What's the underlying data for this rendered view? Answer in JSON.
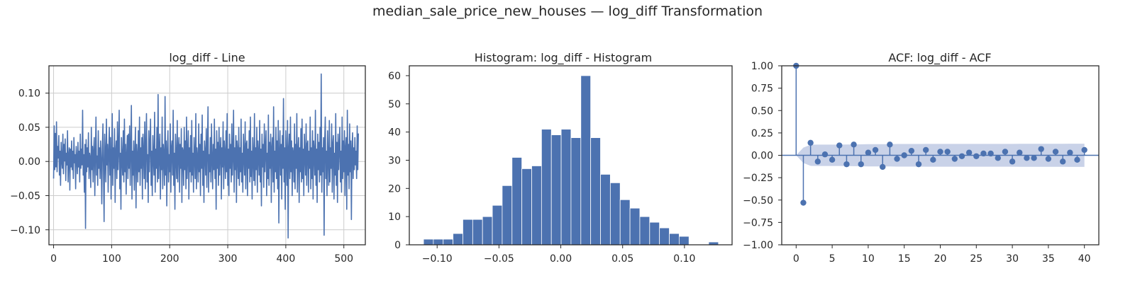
{
  "figure": {
    "suptitle": "median_sale_price_new_houses — log_diff Transformation"
  },
  "colors": {
    "series": "#4c72b0",
    "confidence_band": "#c9d2e8",
    "grid": "#cccccc",
    "axes_edge": "#262626",
    "text": "#262626"
  },
  "chart_data": [
    {
      "type": "line",
      "title": "log_diff - Line",
      "xlabel": "",
      "ylabel": "",
      "xlim": [
        -8,
        537
      ],
      "ylim": [
        -0.122,
        0.14
      ],
      "xticks": [
        0,
        100,
        200,
        300,
        400,
        500
      ],
      "xtick_labels": [
        "0",
        "100",
        "200",
        "300",
        "400",
        "500"
      ],
      "yticks": [
        -0.1,
        -0.05,
        0.0,
        0.05,
        0.1
      ],
      "ytick_labels": [
        "−0.10",
        "−0.05",
        "0.00",
        "0.05",
        "0.10"
      ],
      "grid": true,
      "series": [
        {
          "x_start": 0,
          "x_step": 1,
          "n": 526,
          "values": [
            -0.025,
            0.052,
            -0.012,
            0.041,
            -0.008,
            0.058,
            -0.015,
            0.022,
            0.005,
            0.038,
            -0.02,
            0.015,
            -0.035,
            0.028,
            0.002,
            -0.01,
            0.04,
            -0.018,
            0.025,
            0.001,
            0.033,
            -0.028,
            0.012,
            -0.005,
            0.045,
            -0.03,
            0.008,
            0.02,
            -0.042,
            0.018,
            -0.008,
            0.03,
            -0.012,
            0.015,
            -0.025,
            0.035,
            -0.002,
            0.01,
            -0.04,
            0.022,
            0.005,
            -0.018,
            0.028,
            -0.008,
            0.015,
            -0.03,
            0.04,
            -0.01,
            0.018,
            -0.005,
            0.075,
            -0.02,
            0.01,
            -0.045,
            0.025,
            -0.098,
            0.032,
            -0.015,
            0.02,
            -0.008,
            0.042,
            -0.025,
            0.012,
            0.005,
            -0.038,
            0.05,
            -0.012,
            0.022,
            -0.03,
            0.015,
            0.035,
            -0.05,
            0.01,
            0.065,
            -0.02,
            0.008,
            -0.035,
            0.045,
            -0.01,
            0.02,
            -0.025,
            0.03,
            0.002,
            -0.062,
            0.018,
            0.055,
            -0.015,
            -0.088,
            0.04,
            0.01,
            -0.03,
            0.062,
            -0.005,
            0.025,
            -0.045,
            0.015,
            0.05,
            -0.02,
            0.035,
            -0.055,
            0.008,
            0.07,
            -0.035,
            0.02,
            -0.01,
            0.048,
            -0.06,
            0.015,
            0.03,
            -0.025,
            0.058,
            -0.012,
            0.02,
            0.075,
            -0.04,
            0.012,
            -0.07,
            0.035,
            0.005,
            -0.02,
            0.045,
            -0.03,
            0.062,
            -0.015,
            0.025,
            -0.048,
            0.01,
            0.038,
            -0.025,
            0.04,
            -0.01,
            0.052,
            -0.035,
            0.02,
            0.082,
            -0.055,
            0.015,
            -0.02,
            0.03,
            -0.042,
            0.01,
            0.05,
            -0.068,
            0.025,
            0.008,
            -0.03,
            0.045,
            -0.015,
            0.065,
            -0.035,
            0.02,
            -0.01,
            0.035,
            -0.055,
            0.04,
            0.012,
            -0.025,
            0.058,
            -0.04,
            0.02,
            0.07,
            -0.03,
            0.01,
            -0.06,
            0.045,
            -0.015,
            0.025,
            0.062,
            -0.035,
            0.015,
            -0.05,
            0.038,
            0.005,
            -0.02,
            0.072,
            -0.045,
            0.018,
            -0.01,
            0.05,
            -0.03,
            0.098,
            -0.025,
            0.015,
            0.04,
            -0.055,
            0.02,
            -0.012,
            0.065,
            -0.04,
            0.025,
            0.008,
            -0.035,
            0.095,
            -0.02,
            0.03,
            -0.065,
            0.015,
            0.045,
            -0.03,
            0.01,
            -0.015,
            0.055,
            -0.045,
            0.02,
            0.03,
            -0.02,
            0.075,
            -0.035,
            0.012,
            -0.07,
            0.04,
            0.008,
            -0.025,
            0.06,
            -0.03,
            0.018,
            0.035,
            -0.045,
            0.025,
            -0.01,
            0.048,
            -0.06,
            0.02,
            0.015,
            -0.035,
            0.05,
            -0.012,
            0.03,
            -0.04,
            0.065,
            -0.025,
            0.01,
            0.045,
            -0.055,
            0.02,
            -0.015,
            0.038,
            -0.03,
            0.06,
            -0.02,
            0.012,
            -0.045,
            0.035,
            0.008,
            -0.025,
            0.07,
            -0.04,
            0.02,
            0.005,
            -0.03,
            0.055,
            -0.015,
            0.025,
            -0.05,
            0.04,
            -0.01,
            0.068,
            -0.035,
            0.015,
            -0.06,
            0.03,
            0.012,
            -0.02,
            0.048,
            -0.038,
            0.02,
            0.08,
            -0.045,
            0.01,
            -0.015,
            0.035,
            -0.03,
            0.055,
            0.005,
            -0.04,
            0.025,
            -0.012,
            0.062,
            -0.025,
            0.018,
            -0.07,
            0.045,
            -0.01,
            0.028,
            -0.035,
            0.05,
            -0.02,
            0.015,
            0.035,
            -0.055,
            0.02,
            -0.008,
            0.058,
            -0.04,
            0.03,
            0.012,
            -0.025,
            0.045,
            -0.015,
            0.07,
            -0.035,
            0.018,
            -0.05,
            0.04,
            -0.01,
            0.025,
            -0.03,
            0.055,
            -0.02,
            0.01,
            0.075,
            -0.045,
            0.02,
            -0.012,
            0.038,
            -0.06,
            0.03,
            0.015,
            -0.025,
            0.05,
            -0.035,
            0.02,
            -0.015,
            0.062,
            -0.03,
            0.012,
            -0.045,
            0.04,
            0.008,
            -0.02,
            0.058,
            -0.04,
            0.025,
            0.03,
            -0.05,
            0.018,
            -0.01,
            0.045,
            -0.03,
            0.065,
            -0.022,
            0.015,
            -0.055,
            0.035,
            0.005,
            -0.028,
            0.07,
            -0.035,
            0.02,
            -0.012,
            0.05,
            -0.045,
            0.03,
            0.01,
            -0.02,
            0.06,
            -0.03,
            0.018,
            -0.065,
            0.04,
            -0.008,
            0.025,
            -0.038,
            0.055,
            -0.015,
            0.02,
            0.045,
            -0.05,
            0.012,
            -0.025,
            0.068,
            -0.035,
            0.028,
            -0.01,
            0.04,
            -0.06,
            0.02,
            0.035,
            -0.03,
            0.08,
            -0.045,
            0.015,
            -0.015,
            0.05,
            -0.025,
            0.03,
            -0.04,
            0.06,
            -0.09,
            0.012,
            0.045,
            -0.02,
            0.025,
            -0.055,
            0.038,
            -0.01,
            0.092,
            -0.03,
            0.02,
            -0.07,
            0.045,
            0.005,
            -0.035,
            0.06,
            -0.112,
            0.018,
            0.04,
            -0.025,
            0.065,
            -0.015,
            0.03,
            -0.05,
            0.02,
            0.012,
            -0.03,
            0.055,
            -0.04,
            0.025,
            -0.01,
            0.07,
            -0.045,
            0.015,
            0.035,
            -0.06,
            0.02,
            -0.015,
            0.048,
            -0.03,
            0.062,
            -0.025,
            0.018,
            -0.05,
            0.04,
            0.008,
            -0.02,
            0.055,
            -0.035,
            0.025,
            0.03,
            -0.045,
            0.015,
            -0.01,
            0.065,
            -0.04,
            0.02,
            -0.025,
            0.045,
            -0.055,
            0.03,
            0.012,
            -0.02,
            0.075,
            -0.035,
            0.018,
            -0.06,
            0.04,
            -0.012,
            0.028,
            -0.03,
            0.05,
            -0.02,
            0.128,
            -0.045,
            0.02,
            -0.015,
            0.035,
            -0.108,
            0.03,
            0.065,
            -0.025,
            0.015,
            -0.05,
            0.045,
            0.005,
            -0.035,
            0.06,
            -0.03,
            0.02,
            -0.01,
            0.055,
            -0.045,
            0.025,
            0.038,
            -0.055,
            0.012,
            -0.02,
            0.07,
            -0.035,
            0.028,
            -0.06,
            0.04,
            -0.012,
            0.02,
            0.05,
            -0.03,
            0.015,
            -0.045,
            0.065,
            -0.025,
            0.03,
            -0.015,
            0.045,
            -0.05,
            0.02,
            0.035,
            -0.07,
            0.075,
            -0.02,
            0.025,
            -0.04,
            0.055,
            -0.015,
            0.03,
            -0.085,
            0.018,
            0.042,
            -0.025,
            0.02,
            -0.012,
            0.035,
            -0.005,
            0.015
          ]
        }
      ]
    },
    {
      "type": "bar",
      "title": "Histogram: log_diff - Histogram",
      "xlabel": "",
      "ylabel": "",
      "xlim": [
        -0.1225,
        0.1385
      ],
      "ylim": [
        0,
        63.5
      ],
      "xticks": [
        -0.1,
        -0.05,
        0.0,
        0.05,
        0.1
      ],
      "xtick_labels": [
        "−0.10",
        "−0.05",
        "0.00",
        "0.05",
        "0.10"
      ],
      "yticks": [
        0,
        10,
        20,
        30,
        40,
        50,
        60
      ],
      "ytick_labels": [
        "0",
        "10",
        "20",
        "30",
        "40",
        "50",
        "60"
      ],
      "grid": false,
      "bin_start": -0.111,
      "bin_width": 0.00795,
      "counts": [
        2,
        2,
        2,
        4,
        9,
        9,
        10,
        14,
        21,
        31,
        27,
        28,
        41,
        39,
        41,
        38,
        60,
        38,
        25,
        22,
        16,
        13,
        10,
        8,
        6,
        4,
        3,
        0,
        0,
        1
      ]
    },
    {
      "type": "scatter",
      "title": "ACF: log_diff - ACF",
      "xlabel": "",
      "ylabel": "",
      "xlim": [
        -2,
        42
      ],
      "ylim": [
        -1.0,
        1.0
      ],
      "xticks": [
        0,
        5,
        10,
        15,
        20,
        25,
        30,
        35,
        40
      ],
      "xtick_labels": [
        "0",
        "5",
        "10",
        "15",
        "20",
        "25",
        "30",
        "35",
        "40"
      ],
      "yticks": [
        -1.0,
        -0.75,
        -0.5,
        -0.25,
        0.0,
        0.25,
        0.5,
        0.75,
        1.0
      ],
      "ytick_labels": [
        "−1.00",
        "−0.75",
        "−0.50",
        "−0.25",
        "0.00",
        "0.25",
        "0.50",
        "0.75",
        "1.00"
      ],
      "grid": false,
      "lags": [
        0,
        1,
        2,
        3,
        4,
        5,
        6,
        7,
        8,
        9,
        10,
        11,
        12,
        13,
        14,
        15,
        16,
        17,
        18,
        19,
        20,
        21,
        22,
        23,
        24,
        25,
        26,
        27,
        28,
        29,
        30,
        31,
        32,
        33,
        34,
        35,
        36,
        37,
        38,
        39,
        40
      ],
      "acf": [
        1.0,
        -0.53,
        0.14,
        -0.07,
        0.01,
        -0.05,
        0.11,
        -0.1,
        0.12,
        -0.1,
        0.03,
        0.06,
        -0.13,
        0.12,
        -0.04,
        0.0,
        0.05,
        -0.1,
        0.06,
        -0.05,
        0.04,
        0.04,
        -0.04,
        -0.01,
        0.03,
        -0.01,
        0.02,
        0.02,
        -0.03,
        0.04,
        -0.07,
        0.03,
        -0.03,
        -0.03,
        0.07,
        -0.04,
        0.04,
        -0.07,
        0.03,
        -0.05,
        0.06
      ],
      "conf_upper": [
        0,
        0.086,
        0.118,
        0.12,
        0.12,
        0.12,
        0.12,
        0.121,
        0.122,
        0.123,
        0.124,
        0.124,
        0.124,
        0.125,
        0.126,
        0.126,
        0.126,
        0.126,
        0.127,
        0.127,
        0.127,
        0.127,
        0.127,
        0.127,
        0.127,
        0.127,
        0.127,
        0.127,
        0.127,
        0.127,
        0.127,
        0.128,
        0.128,
        0.128,
        0.128,
        0.128,
        0.128,
        0.128,
        0.129,
        0.129,
        0.129
      ]
    }
  ]
}
